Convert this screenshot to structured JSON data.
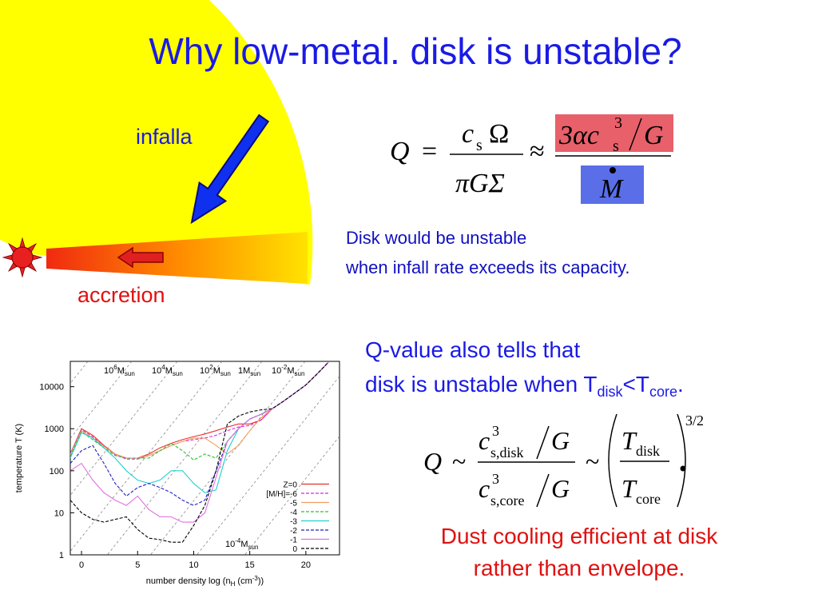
{
  "title": "Why low-metal. disk is unstable?",
  "infall_label": "infalla",
  "accretion_label": "accretion",
  "equation1": {
    "q": "Q",
    "eq": "=",
    "num_c": "c",
    "num_s": "s",
    "num_omega": "Ω",
    "den": "πGΣ",
    "approx": "≈",
    "rhs_num": "3αc",
    "rhs_s": "s",
    "rhs_exp": "3",
    "rhs_g": "G",
    "rhs_den": "M"
  },
  "note1": [
    "Disk would be unstable",
    "when infall rate exceeds its capacity."
  ],
  "note2": {
    "line1": "Q-value also tells that",
    "line2": "disk is unstable when T",
    "sub1": "disk",
    "mid": "<T",
    "sub2": "core",
    "end": "."
  },
  "equation2": {
    "q": "Q",
    "sim1": "~",
    "c1": "c",
    "exp1": "3",
    "sub1": "s,disk",
    "g1": "G",
    "c2": "c",
    "exp2": "3",
    "sub2": "s,core",
    "g2": "G",
    "sim2": "~",
    "t1": "T",
    "tsub1": "disk",
    "t2": "T",
    "tsub2": "core",
    "power": "3/2"
  },
  "note3": [
    "Dust cooling efficient at disk",
    "rather than envelope."
  ],
  "chart_data": {
    "type": "line",
    "xlabel": {
      "text": "number density log (n",
      "sub": "H",
      "mid": " (cm",
      "sup": "-3",
      "end": "))"
    },
    "ylabel": "temperature T (K)",
    "log_y": true,
    "xlim": [
      -1,
      23
    ],
    "ylim": [
      1,
      40000
    ],
    "xticks": [
      0,
      5,
      10,
      15,
      20
    ],
    "yticks": [
      1,
      10,
      100,
      1000,
      10000
    ],
    "legend": "lower right",
    "mass_labels": [
      {
        "base": "10",
        "exp": "6",
        "unit": "M",
        "sub": "sun"
      },
      {
        "base": "10",
        "exp": "4",
        "unit": "M",
        "sub": "sun"
      },
      {
        "base": "10",
        "exp": "2",
        "unit": "M",
        "sub": "sun"
      },
      {
        "base": "1",
        "unit": "M",
        "sub": "sun"
      },
      {
        "base": "10",
        "exp": "-2",
        "unit": "M",
        "sub": "sun"
      },
      {
        "base": "10",
        "exp": "-4",
        "unit": "M",
        "sub": "sun"
      }
    ],
    "x": [
      -1,
      0,
      1,
      2,
      3,
      4,
      5,
      6,
      7,
      8,
      9,
      10,
      11,
      12,
      13,
      14,
      15,
      16,
      17,
      18,
      19,
      20,
      21,
      22
    ],
    "series": [
      {
        "name": "Z=0",
        "color": "#e8302a",
        "dash": false,
        "values": [
          250,
          1000,
          700,
          400,
          250,
          200,
          200,
          250,
          350,
          450,
          550,
          650,
          750,
          900,
          1100,
          1300,
          1300,
          1600,
          3000,
          4500,
          7000,
          11000,
          20000,
          38000
        ]
      },
      {
        "name": "[M/H]=-6",
        "color": "#e020e0",
        "dash": true,
        "values": [
          250,
          950,
          650,
          380,
          240,
          190,
          190,
          230,
          300,
          400,
          500,
          550,
          600,
          700,
          900,
          1100,
          1200,
          1600,
          3000,
          4500,
          7000,
          11000,
          20000,
          38000
        ]
      },
      {
        "name": "-5",
        "color": "#f0a060",
        "dash": false,
        "values": [
          240,
          900,
          600,
          380,
          250,
          200,
          200,
          230,
          300,
          400,
          500,
          600,
          600,
          400,
          250,
          400,
          900,
          1800,
          3000,
          4500,
          7000,
          11000,
          20000,
          38000
        ]
      },
      {
        "name": "-4",
        "color": "#30c030",
        "dash": true,
        "values": [
          220,
          850,
          550,
          350,
          230,
          200,
          200,
          200,
          300,
          450,
          300,
          180,
          250,
          200,
          500,
          1000,
          1700,
          2200,
          3000,
          4500,
          7000,
          11000,
          20000,
          38000
        ]
      },
      {
        "name": "-3",
        "color": "#20d0d0",
        "dash": false,
        "values": [
          200,
          800,
          600,
          350,
          200,
          100,
          60,
          50,
          60,
          100,
          100,
          50,
          30,
          35,
          300,
          1000,
          1700,
          2200,
          3000,
          4500,
          7000,
          11000,
          20000,
          38000
        ]
      },
      {
        "name": "-2",
        "color": "#2020c0",
        "dash": true,
        "values": [
          150,
          300,
          400,
          150,
          50,
          25,
          40,
          50,
          40,
          30,
          20,
          15,
          20,
          100,
          500,
          1000,
          1700,
          2200,
          3000,
          4500,
          7000,
          11000,
          20000,
          38000
        ]
      },
      {
        "name": "-1",
        "color": "#e070e0",
        "dash": false,
        "values": [
          100,
          150,
          60,
          30,
          20,
          15,
          25,
          12,
          8,
          8,
          6,
          6,
          10,
          70,
          500,
          1000,
          1700,
          2200,
          3000,
          4500,
          7000,
          11000,
          20000,
          38000
        ]
      },
      {
        "name": "0",
        "color": "#000000",
        "dash": true,
        "values": [
          20,
          10,
          7,
          6,
          7,
          8,
          4,
          2.5,
          2.3,
          2,
          2,
          5,
          15,
          100,
          1300,
          2000,
          2500,
          2800,
          3000,
          4500,
          7000,
          11000,
          20000,
          38000
        ]
      }
    ]
  }
}
